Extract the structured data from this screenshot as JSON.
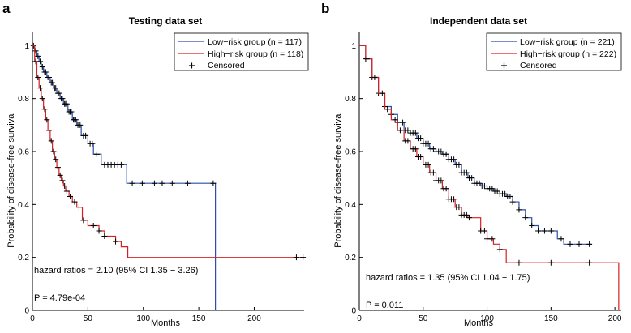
{
  "chart_data": [
    {
      "panel_letter": "a",
      "type": "line",
      "title": "Testing data set",
      "xlabel": "Months",
      "ylabel": "Probability of disease-free survival",
      "xlim": [
        0,
        245
      ],
      "ylim": [
        0,
        1.05
      ],
      "xticks": [
        0,
        50,
        100,
        150,
        200
      ],
      "yticks": [
        0,
        0.2,
        0.4,
        0.6,
        0.8,
        1
      ],
      "ytick_labels": [
        "0",
        "0.2",
        "0.4",
        "0.6",
        "0.8",
        "1"
      ],
      "legend": {
        "position": "top-right",
        "entries": [
          "Low−risk group (n = 117)",
          "High−risk group (n = 118)",
          "Censored"
        ]
      },
      "annotations": [
        "hazard ratios = 2.10 (95% CI 1.35 − 3.26)",
        "P = 4.79e-04"
      ],
      "series": [
        {
          "name": "Low−risk group (n = 117)",
          "color": "#2a4fa8",
          "x": [
            0,
            2,
            4,
            6,
            8,
            10,
            13,
            16,
            19,
            22,
            25,
            28,
            32,
            36,
            40,
            44,
            50,
            55,
            62,
            65,
            70,
            78,
            85,
            95,
            110,
            130,
            150,
            165,
            165
          ],
          "y": [
            1.0,
            0.98,
            0.96,
            0.94,
            0.92,
            0.9,
            0.88,
            0.86,
            0.84,
            0.82,
            0.8,
            0.78,
            0.75,
            0.72,
            0.7,
            0.66,
            0.63,
            0.59,
            0.55,
            0.55,
            0.55,
            0.55,
            0.48,
            0.48,
            0.48,
            0.48,
            0.48,
            0.48,
            0.0
          ],
          "censored_x": [
            1,
            3,
            5,
            7,
            9,
            11,
            12,
            14,
            15,
            17,
            18,
            20,
            21,
            23,
            24,
            26,
            27,
            29,
            30,
            31,
            33,
            34,
            35,
            37,
            38,
            39,
            41,
            43,
            46,
            48,
            52,
            54,
            58,
            65,
            68,
            71,
            74,
            77,
            80,
            90,
            99,
            110,
            117,
            126,
            140,
            163
          ]
        },
        {
          "name": "High−risk group (n = 118)",
          "color": "#d62020",
          "x": [
            0,
            2,
            4,
            6,
            8,
            10,
            12,
            14,
            16,
            18,
            20,
            22,
            24,
            26,
            28,
            30,
            33,
            36,
            40,
            45,
            50,
            60,
            65,
            75,
            80,
            86,
            100,
            150,
            200,
            245
          ],
          "y": [
            1.0,
            0.94,
            0.88,
            0.84,
            0.8,
            0.76,
            0.72,
            0.68,
            0.64,
            0.6,
            0.57,
            0.54,
            0.51,
            0.49,
            0.47,
            0.45,
            0.43,
            0.41,
            0.39,
            0.34,
            0.32,
            0.3,
            0.28,
            0.26,
            0.24,
            0.2,
            0.2,
            0.2,
            0.2,
            0.2
          ],
          "censored_x": [
            3,
            5,
            7,
            9,
            11,
            13,
            15,
            17,
            19,
            21,
            23,
            25,
            27,
            29,
            31,
            34,
            38,
            42,
            46,
            55,
            60,
            65,
            75,
            238,
            244
          ]
        }
      ]
    },
    {
      "panel_letter": "b",
      "type": "line",
      "title": "Independent data set",
      "xlabel": "Months",
      "ylabel": "Probability of disease-free survival",
      "xlim": [
        0,
        205
      ],
      "ylim": [
        0,
        1.05
      ],
      "xticks": [
        0,
        50,
        100,
        150,
        200
      ],
      "yticks": [
        0,
        0.2,
        0.4,
        0.6,
        0.8,
        1
      ],
      "ytick_labels": [
        "0",
        "0.2",
        "0.4",
        "0.6",
        "0.8",
        "1"
      ],
      "legend": {
        "position": "top-right",
        "entries": [
          "Low−risk group (n = 221)",
          "High−risk group (n = 222)",
          "Censored"
        ]
      },
      "annotations": [
        "hazard ratios = 1.35 (95% CI 1.04 − 1.75)",
        "P = 0.011"
      ],
      "series": [
        {
          "name": "Low−risk group (n = 221)",
          "color": "#2a4fa8",
          "x": [
            0,
            5,
            10,
            15,
            20,
            25,
            30,
            35,
            40,
            45,
            50,
            55,
            60,
            65,
            70,
            75,
            80,
            85,
            90,
            95,
            100,
            105,
            110,
            115,
            120,
            125,
            130,
            135,
            140,
            145,
            150,
            155,
            160,
            170,
            182
          ],
          "y": [
            1.0,
            0.95,
            0.88,
            0.82,
            0.77,
            0.74,
            0.71,
            0.68,
            0.67,
            0.65,
            0.63,
            0.61,
            0.6,
            0.59,
            0.57,
            0.55,
            0.52,
            0.5,
            0.48,
            0.47,
            0.46,
            0.45,
            0.44,
            0.43,
            0.41,
            0.38,
            0.35,
            0.32,
            0.3,
            0.3,
            0.3,
            0.27,
            0.25,
            0.25,
            0.25
          ],
          "censored_x": [
            5,
            10,
            15,
            20,
            25,
            30,
            34,
            36,
            38,
            40,
            42,
            44,
            46,
            48,
            50,
            52,
            54,
            56,
            58,
            60,
            62,
            64,
            66,
            68,
            70,
            72,
            74,
            76,
            78,
            80,
            82,
            84,
            86,
            88,
            90,
            92,
            94,
            96,
            98,
            100,
            102,
            104,
            106,
            108,
            110,
            112,
            114,
            116,
            118,
            120,
            125,
            130,
            135,
            140,
            145,
            150,
            158,
            165,
            172,
            180
          ]
        },
        {
          "name": "High−risk group (n = 222)",
          "color": "#d62020",
          "x": [
            0,
            5,
            10,
            15,
            20,
            25,
            30,
            35,
            40,
            45,
            50,
            55,
            60,
            65,
            70,
            75,
            80,
            85,
            90,
            95,
            100,
            105,
            110,
            115,
            120,
            150,
            180,
            200,
            203,
            203
          ],
          "y": [
            1.0,
            0.95,
            0.88,
            0.82,
            0.76,
            0.72,
            0.68,
            0.64,
            0.61,
            0.58,
            0.55,
            0.52,
            0.49,
            0.46,
            0.42,
            0.39,
            0.36,
            0.35,
            0.35,
            0.3,
            0.27,
            0.25,
            0.23,
            0.18,
            0.18,
            0.18,
            0.18,
            0.18,
            0.18,
            0.0
          ],
          "censored_x": [
            6,
            12,
            18,
            22,
            28,
            32,
            36,
            38,
            42,
            44,
            46,
            48,
            52,
            54,
            56,
            58,
            60,
            62,
            64,
            66,
            68,
            70,
            72,
            74,
            76,
            78,
            80,
            82,
            84,
            86,
            95,
            98,
            100,
            104,
            110,
            125,
            150,
            180
          ]
        }
      ]
    }
  ]
}
